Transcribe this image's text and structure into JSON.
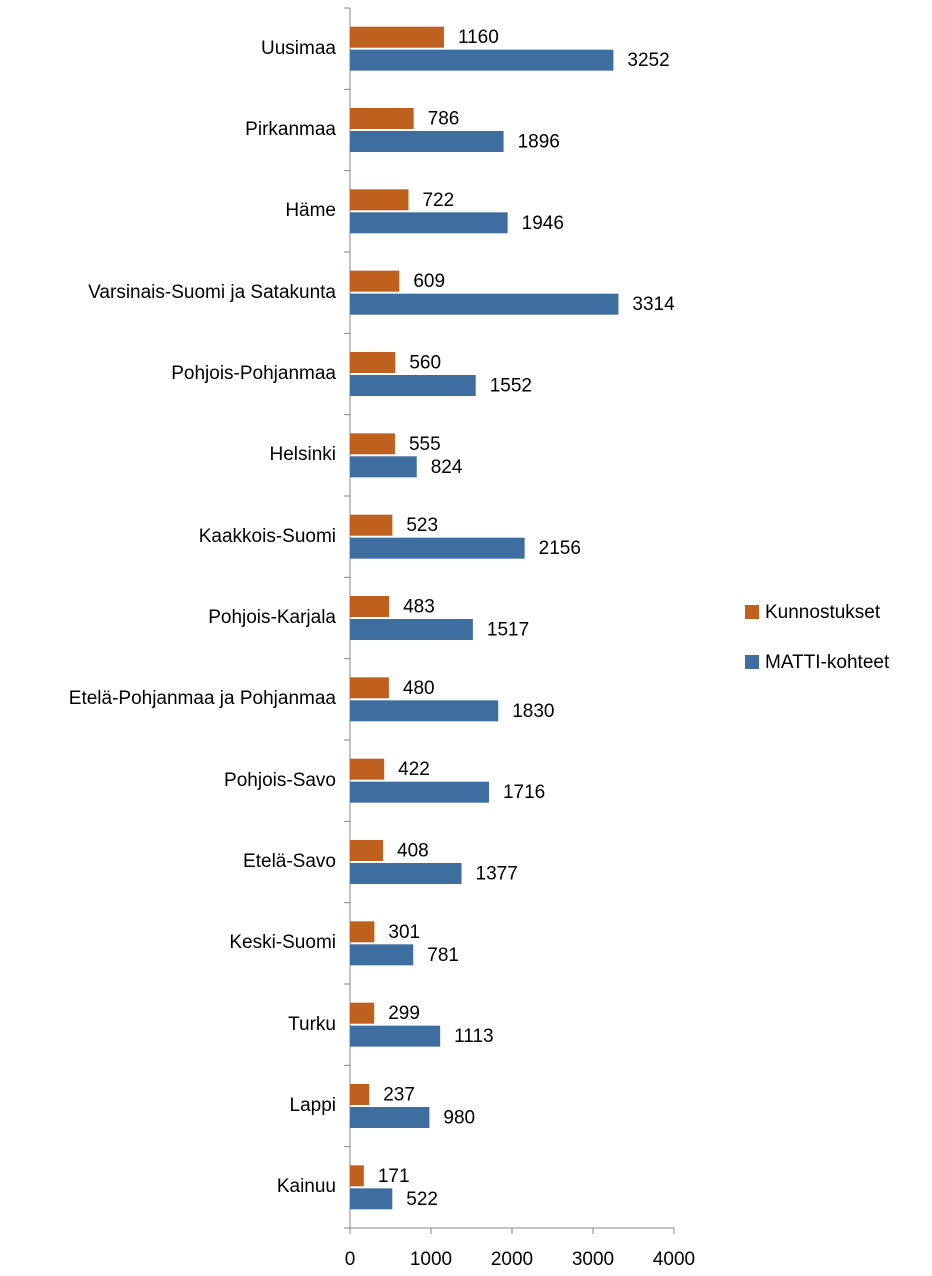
{
  "chart_data": {
    "type": "bar",
    "orientation": "horizontal",
    "categories": [
      "Uusimaa",
      "Pirkanmaa",
      "Häme",
      "Varsinais-Suomi ja Satakunta",
      "Pohjois-Pohjanmaa",
      "Helsinki",
      "Kaakkois-Suomi",
      "Pohjois-Karjala",
      "Etelä-Pohjanmaa ja Pohjanmaa",
      "Pohjois-Savo",
      "Etelä-Savo",
      "Keski-Suomi",
      "Turku",
      "Lappi",
      "Kainuu"
    ],
    "series": [
      {
        "name": "Kunnostukset",
        "color": "#c0601f",
        "values": [
          1160,
          786,
          722,
          609,
          560,
          555,
          523,
          483,
          480,
          422,
          408,
          301,
          299,
          237,
          171
        ]
      },
      {
        "name": "MATTI-kohteet",
        "color": "#3d6e9f",
        "values": [
          3252,
          1896,
          1946,
          3314,
          1552,
          824,
          2156,
          1517,
          1830,
          1716,
          1377,
          781,
          1113,
          980,
          522
        ]
      }
    ],
    "xlim": [
      0,
      4000
    ],
    "xticks": [
      0,
      1000,
      2000,
      3000,
      4000
    ],
    "legend": "right"
  }
}
